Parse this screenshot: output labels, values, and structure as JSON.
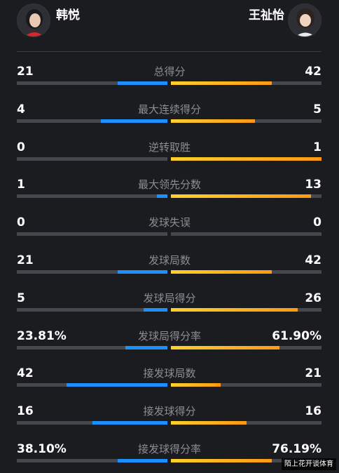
{
  "players": {
    "left": {
      "name": "韩悦",
      "avatar_icon": "player-avatar-icon"
    },
    "right": {
      "name": "王祉怡",
      "avatar_icon": "player-avatar-icon"
    }
  },
  "colors": {
    "left_bar": "#1e8fff",
    "right_bar": "#ffa91a",
    "track": "#47484d"
  },
  "stats": [
    {
      "label": "总得分",
      "left": "21",
      "right": "42",
      "left_share": 0.33,
      "right_share": 0.67
    },
    {
      "label": "最大连续得分",
      "left": "4",
      "right": "5",
      "left_share": 0.44,
      "right_share": 0.56
    },
    {
      "label": "逆转取胜",
      "left": "0",
      "right": "1",
      "left_share": 0,
      "right_share": 1
    },
    {
      "label": "最大领先分数",
      "left": "1",
      "right": "13",
      "left_share": 0.07,
      "right_share": 0.93
    },
    {
      "label": "发球失误",
      "left": "0",
      "right": "0",
      "left_share": 0,
      "right_share": 0
    },
    {
      "label": "发球局数",
      "left": "21",
      "right": "42",
      "left_share": 0.33,
      "right_share": 0.67
    },
    {
      "label": "发球局得分",
      "left": "5",
      "right": "26",
      "left_share": 0.16,
      "right_share": 0.84
    },
    {
      "label": "发球局得分率",
      "left": "23.81%",
      "right": "61.90%",
      "left_share": 0.28,
      "right_share": 0.72
    },
    {
      "label": "接发球局数",
      "left": "42",
      "right": "21",
      "left_share": 0.67,
      "right_share": 0.33
    },
    {
      "label": "接发球得分",
      "left": "16",
      "right": "16",
      "left_share": 0.5,
      "right_share": 0.5
    },
    {
      "label": "接发球得分率",
      "left": "38.10%",
      "right": "76.19%",
      "left_share": 0.33,
      "right_share": 0.67
    }
  ],
  "watermark": "陌上花开谈体育"
}
